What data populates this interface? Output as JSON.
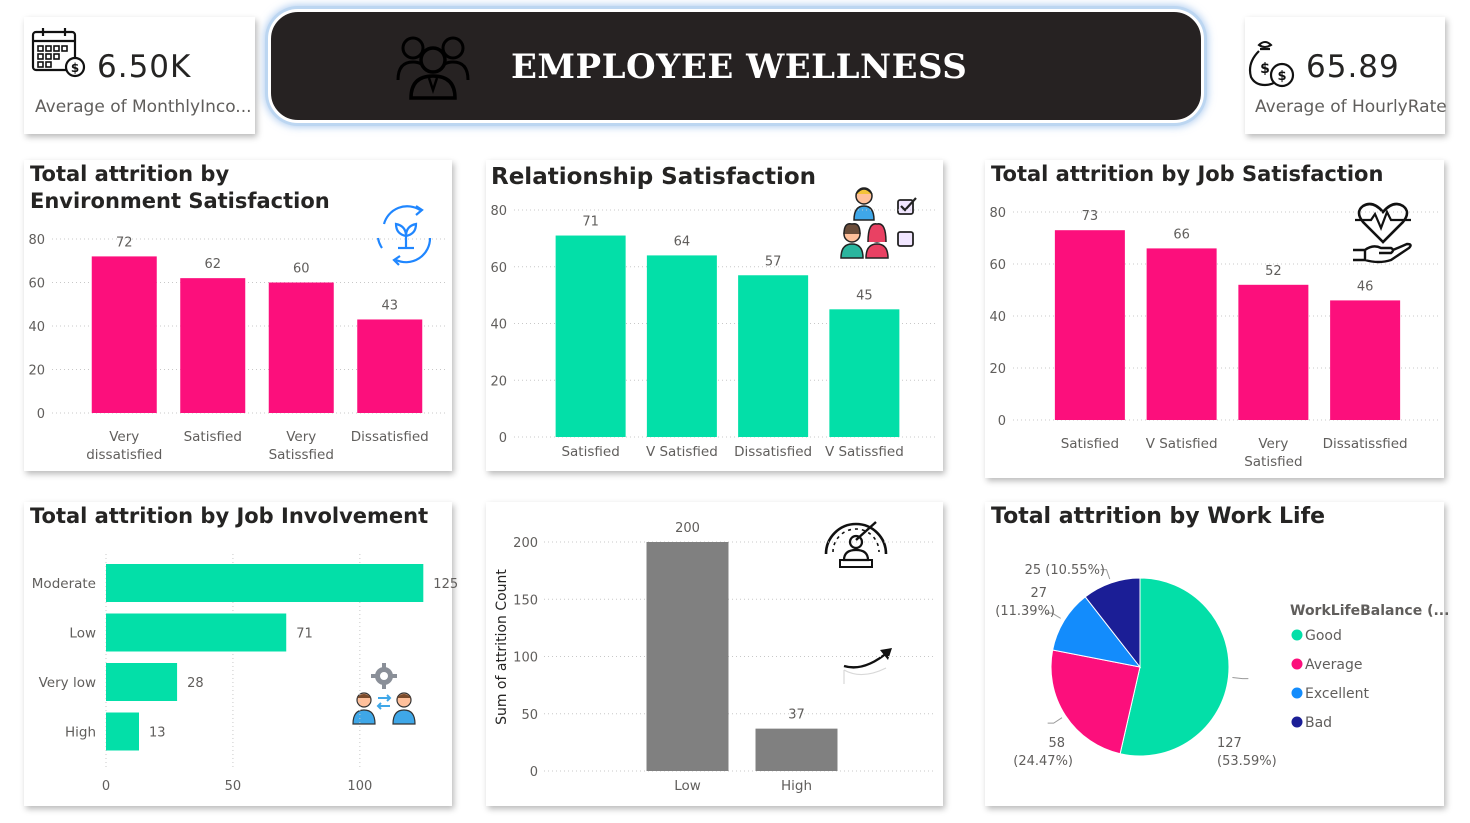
{
  "banner": {
    "title": "EMPLOYEE WELLNESS"
  },
  "kpi_income": {
    "value": "6.50K",
    "label": "Average of MonthlyInco..."
  },
  "kpi_hourly": {
    "value": "65.89",
    "label": "Average of HourlyRate"
  },
  "colors": {
    "pink": "#fc0f7c",
    "teal": "#03dfa8",
    "gray": "#808080",
    "blue": "#138cfc",
    "navy": "#1b1e96"
  },
  "chart_data": [
    {
      "id": "env",
      "type": "bar",
      "title": "Total attrition by Environment Satisfaction",
      "categories": [
        "Very dissatisfied",
        "Satisfied",
        "Very Satissfied",
        "Dissatisfied"
      ],
      "values": [
        72,
        62,
        60,
        43
      ],
      "yticks": [
        0,
        20,
        40,
        60,
        80
      ],
      "ylim": [
        0,
        80
      ],
      "color": "#fc0f7c",
      "grid": true
    },
    {
      "id": "rel",
      "type": "bar",
      "title": "Relationship Satisfaction",
      "categories": [
        "Satisfied",
        "V Satisfied",
        "Dissatisfied",
        "V Satissfied"
      ],
      "values": [
        71,
        64,
        57,
        45
      ],
      "yticks": [
        0,
        20,
        40,
        60,
        80
      ],
      "ylim": [
        0,
        80
      ],
      "color": "#03dfa8",
      "grid": true
    },
    {
      "id": "job",
      "type": "bar",
      "title": "Total attrition by Job Satisfaction",
      "categories": [
        "Satisfied",
        "V Satisfied",
        "Very Satisfied",
        "Dissatissfied"
      ],
      "values": [
        73,
        66,
        52,
        46
      ],
      "yticks": [
        0,
        20,
        40,
        60,
        80
      ],
      "ylim": [
        0,
        80
      ],
      "color": "#fc0f7c",
      "grid": true
    },
    {
      "id": "inv",
      "type": "bar",
      "orientation": "horizontal",
      "title": "Total attrition by Job Involvement",
      "categories": [
        "Moderate",
        "Low",
        "Very low",
        "High"
      ],
      "values": [
        125,
        71,
        28,
        13
      ],
      "xticks": [
        0,
        50,
        100
      ],
      "xlim": [
        0,
        130
      ],
      "color": "#03dfa8",
      "grid": true
    },
    {
      "id": "count",
      "type": "bar",
      "title": "",
      "ylabel": "Sum of attrition Count",
      "categories": [
        "Low",
        "High"
      ],
      "values": [
        200,
        37
      ],
      "yticks": [
        0,
        50,
        100,
        150,
        200
      ],
      "ylim": [
        0,
        200
      ],
      "color": "#808080",
      "grid": true
    },
    {
      "id": "work",
      "type": "pie",
      "title": "Total attrition by Work Life",
      "legend_title": "WorkLifeBalance (...",
      "legend_position": "right",
      "slices": [
        {
          "name": "Good",
          "value": 127,
          "label": "127",
          "pct": "(53.59%)",
          "color": "#03dfa8"
        },
        {
          "name": "Average",
          "value": 58,
          "label": "58",
          "pct": "(24.47%)",
          "color": "#fc0f7c"
        },
        {
          "name": "Excellent",
          "value": 27,
          "label": "27",
          "pct": "(11.39%)",
          "color": "#138cfc"
        },
        {
          "name": "Bad",
          "value": 25,
          "label": "25 (10.55%)",
          "pct": "",
          "color": "#1b1e96"
        }
      ]
    }
  ]
}
